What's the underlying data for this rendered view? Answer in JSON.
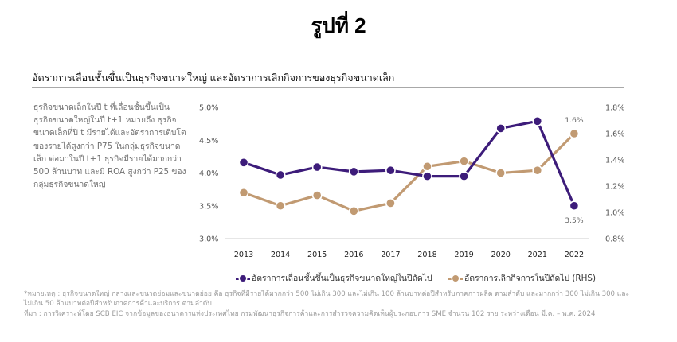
{
  "figure": {
    "title": "รูปที่ 2",
    "subtitle": "อัตราการเลื่อนชั้นขึ้นเป็นธุรกิจขนาดใหญ่ และอัตราการเลิกกิจการของธุรกิจขนาดเล็ก"
  },
  "description": {
    "lines": [
      "ธุรกิจขนาดเล็กในปี t ที่เลื่อนชั้นขึ้นเป็น",
      "ธุรกิจขนาดใหญ่ในปี t+1 หมายถึง ธุรกิจ",
      "ขนาดเล็กที่ปี t มีรายได้และอัตราการเติบโต",
      "ของรายได้สูงกว่า P75 ในกลุ่มธุรกิจขนาด",
      "เล็ก ต่อมาในปี t+1 ธุรกิจมีรายได้มากกว่า",
      "500 ล้านบาท และมี ROA สูงกว่า P25 ของ",
      "กลุ่มธุรกิจขนาดใหญ่"
    ]
  },
  "chart_data": {
    "type": "line",
    "title": "อัตราการเลื่อนชั้นขึ้นเป็นธุรกิจขนาดใหญ่ และอัตราการเลิกกิจการของธุรกิจขนาดเล็ก",
    "x": [
      "2013",
      "2014",
      "2015",
      "2016",
      "2017",
      "2018",
      "2019",
      "2020",
      "2021",
      "2022"
    ],
    "series": [
      {
        "name": "อัตราการเลื่อนชั้นขึ้นเป็นธุรกิจขนาดใหญ่ในปีถัดไป",
        "axis": "left",
        "color": "#3d1c7a",
        "values": [
          4.16,
          3.97,
          4.09,
          4.02,
          4.04,
          3.95,
          3.95,
          4.68,
          4.79,
          3.5
        ],
        "end_label": "3.5%"
      },
      {
        "name": "อัตราการเลิกกิจการในปีถัดไป (RHS)",
        "axis": "right",
        "color": "#c19a72",
        "values": [
          1.15,
          1.05,
          1.13,
          1.01,
          1.07,
          1.35,
          1.39,
          1.3,
          1.32,
          1.6
        ],
        "end_label": "1.6%"
      }
    ],
    "left_axis": {
      "ylim": [
        3.0,
        5.0
      ],
      "ticks": [
        "5.0%",
        "4.5%",
        "4.0%",
        "3.5%",
        "3.0%"
      ],
      "tick_values": [
        5.0,
        4.5,
        4.0,
        3.5,
        3.0
      ]
    },
    "right_axis": {
      "ylim": [
        0.8,
        1.8
      ],
      "ticks": [
        "1.8%",
        "1.6%",
        "1.4%",
        "1.2%",
        "1.0%",
        "0.8%"
      ],
      "tick_values": [
        1.8,
        1.6,
        1.4,
        1.2,
        1.0,
        0.8
      ]
    },
    "xlabel": "",
    "ylabel": "",
    "grid": false,
    "legend_position": "bottom"
  },
  "legend": {
    "items": [
      {
        "label": "อัตราการเลื่อนชั้นขึ้นเป็นธุรกิจขนาดใหญ่ในปีถัดไป",
        "color": "#3d1c7a"
      },
      {
        "label": "อัตราการเลิกกิจการในปีถัดไป (RHS)",
        "color": "#c19a72"
      }
    ]
  },
  "footnotes": {
    "lines": [
      "*หมายเหตุ : ธุรกิจขนาดใหญ่ กลางและขนาดย่อมและขนาดย่อย คือ ธุรกิจที่มีรายได้มากกว่า 500 ไม่เกิน 300 และไม่เกิน 100 ล้านบาทต่อปีสำหรับภาคการผลิต ตามลำดับ และมากกว่า 300 ไม่เกิน 300 และ",
      "ไม่เกิน 50 ล้านบาทต่อปีสำหรับภาคการค้าและบริการ ตามลำดับ",
      "ที่มา : การวิเคราะห์โดย SCB EIC จากข้อมูลของธนาคารแห่งประเทศไทย กรมพัฒนาธุรกิจการค้าและการสำรวจความคิดเห็นผู้ประกอบการ SME จำนวน 102 ราย ระหว่างเดือน มี.ค. – พ.ค. 2024"
    ]
  }
}
